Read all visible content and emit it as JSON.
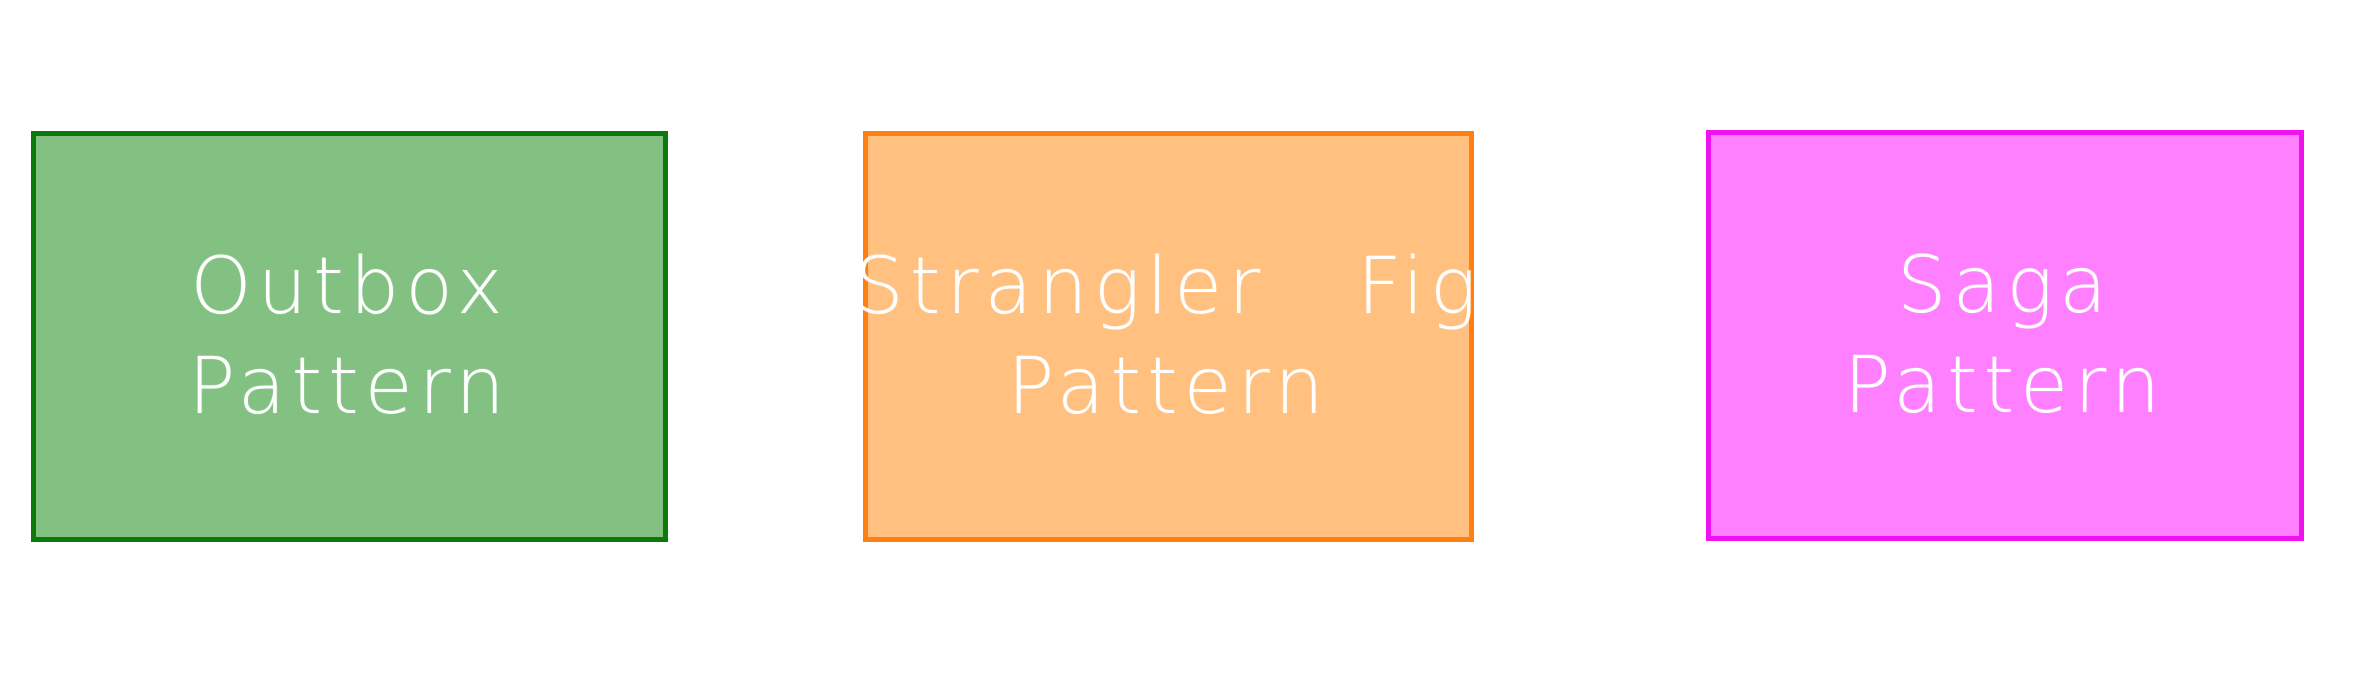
{
  "diagram": {
    "boxes": [
      {
        "lines": [
          "Outbox",
          "Pattern"
        ],
        "fill": "#82c182",
        "stroke": "#0b7a0b",
        "text_color": "#ffffff"
      },
      {
        "lines": [
          "Strangler Fig",
          "Pattern"
        ],
        "fill": "#ffc080",
        "stroke": "#ff8010",
        "text_color": "#ffffff"
      },
      {
        "lines": [
          "Saga",
          "Pattern"
        ],
        "fill": "#ff80ff",
        "stroke": "#f010f0",
        "text_color": "#ffffff"
      }
    ]
  }
}
